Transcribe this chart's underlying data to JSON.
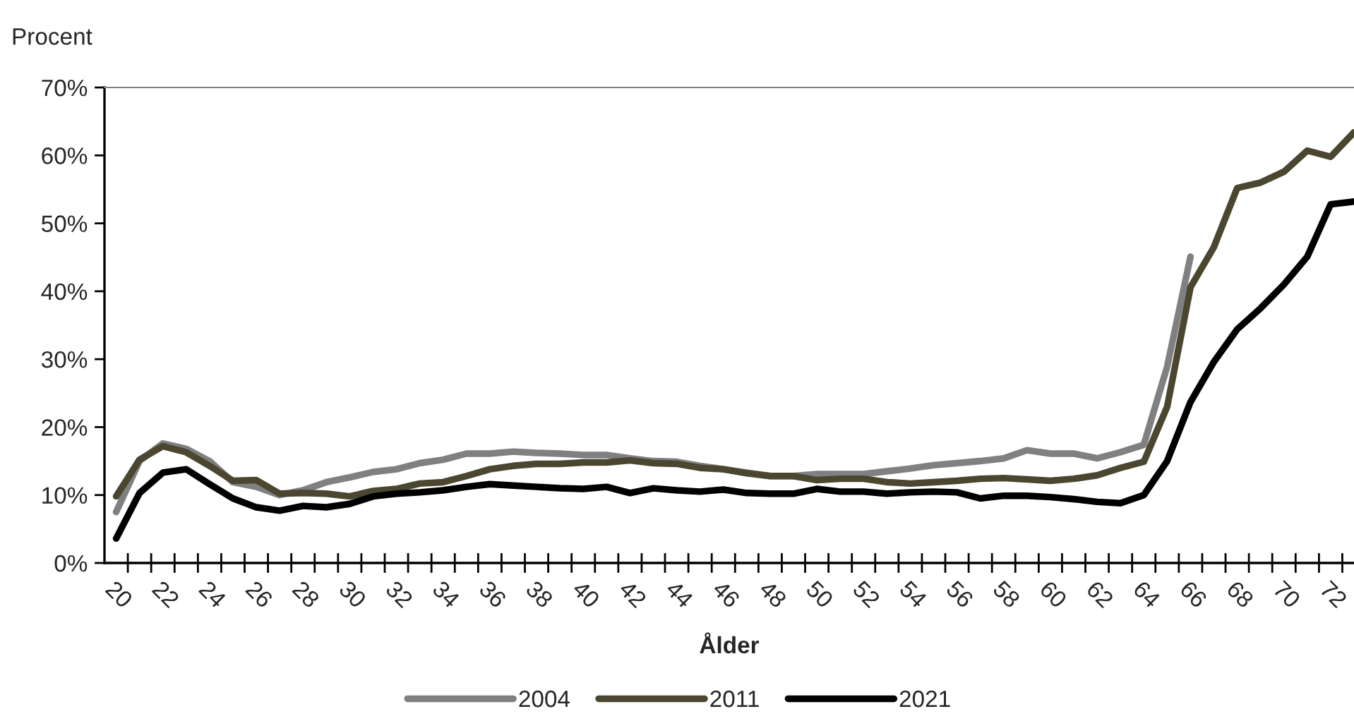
{
  "chart_data": {
    "type": "line",
    "xlabel": "Ålder",
    "ylabel": "Procent",
    "categories": [
      "20",
      null,
      "22",
      null,
      "24",
      null,
      "26",
      null,
      "28",
      null,
      "30",
      null,
      "32",
      null,
      "34",
      null,
      "36",
      null,
      "38",
      null,
      "40",
      null,
      "42",
      null,
      "44",
      null,
      "46",
      null,
      "48",
      null,
      "50",
      null,
      "52",
      null,
      "54",
      null,
      "56",
      null,
      "58",
      null,
      "60",
      null,
      "62",
      null,
      "64",
      null,
      "66",
      null,
      "68",
      null,
      "70",
      null,
      "72",
      null
    ],
    "series": [
      {
        "name": "2004",
        "color": "#808080",
        "values": [
          7.5,
          15,
          17.6,
          16.8,
          15,
          11.9,
          11.2,
          10,
          10.7,
          11.9,
          12.6,
          13.4,
          13.8,
          14.7,
          15.2,
          16.1,
          16.1,
          16.4,
          16.2,
          16.1,
          15.9,
          15.9,
          15.4,
          15.0,
          14.9,
          14.3,
          13.8,
          13.3,
          12.8,
          12.8,
          13.1,
          13.1,
          13.1,
          13.5,
          13.9,
          14.4,
          14.7,
          15.0,
          15.4,
          16.6,
          16.1,
          16.1,
          15.4,
          16.3,
          17.4,
          28.9,
          45.1,
          null,
          null,
          null,
          null,
          null,
          null,
          null
        ]
      },
      {
        "name": "2011",
        "color": "#4b4630",
        "values": [
          9.8,
          15.2,
          17.2,
          16.3,
          14.3,
          12.1,
          12.2,
          10.2,
          10.3,
          10.2,
          9.8,
          10.6,
          10.9,
          11.7,
          11.9,
          12.8,
          13.8,
          14.3,
          14.6,
          14.6,
          14.8,
          14.8,
          15.1,
          14.7,
          14.6,
          14.0,
          13.8,
          13.2,
          12.8,
          12.8,
          12.2,
          12.4,
          12.4,
          11.9,
          11.7,
          11.9,
          12.1,
          12.4,
          12.5,
          12.3,
          12.1,
          12.4,
          12.9,
          14.0,
          14.9,
          23.0,
          40.6,
          46.5,
          55.2,
          56.0,
          57.6,
          60.7,
          59.8,
          63.4
        ]
      },
      {
        "name": "2021",
        "color": "#000000",
        "values": [
          3.6,
          10.3,
          13.3,
          13.8,
          11.6,
          9.5,
          8.2,
          7.7,
          8.4,
          8.2,
          8.7,
          9.8,
          10.2,
          10.4,
          10.7,
          11.2,
          11.6,
          11.4,
          11.2,
          11.0,
          10.9,
          11.2,
          10.3,
          11.0,
          10.7,
          10.5,
          10.8,
          10.3,
          10.2,
          10.2,
          10.9,
          10.5,
          10.5,
          10.2,
          10.4,
          10.5,
          10.4,
          9.5,
          9.9,
          9.9,
          9.7,
          9.4,
          9.0,
          8.8,
          10.0,
          15.0,
          23.7,
          29.6,
          34.4,
          37.5,
          41.0,
          45.1,
          52.8,
          53.2
        ]
      }
    ],
    "ylim": [
      0,
      70
    ],
    "yticks": [
      {
        "value": 0,
        "label": "0%"
      },
      {
        "value": 10,
        "label": "10%"
      },
      {
        "value": 20,
        "label": "20%"
      },
      {
        "value": 30,
        "label": "30%"
      },
      {
        "value": 40,
        "label": "40%"
      },
      {
        "value": 50,
        "label": "50%"
      },
      {
        "value": 60,
        "label": "60%"
      },
      {
        "value": 70,
        "label": "70%"
      }
    ],
    "grid": false,
    "legend": "bottom",
    "line_style": "solid"
  }
}
